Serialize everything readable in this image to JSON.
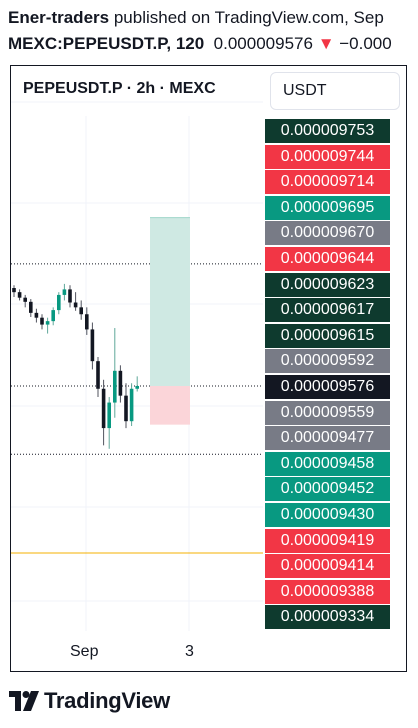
{
  "header": {
    "author": "Ener-traders",
    "published_text": " published on TradingView.com, Sep",
    "symbol": "MEXC:PEPEUSDT.P, 120",
    "price": "0.000009576",
    "arrow": "▼",
    "change": "−0.000"
  },
  "chart_header": {
    "title": "PEPEUSDT.P · 2h · MEXC",
    "unit_button": "USDT"
  },
  "colors": {
    "up": "#089981",
    "down": "#f23645",
    "neutral": "#787b86",
    "dark": "#0e3a2e",
    "current": "#131722",
    "profit_zone": "#cfe9e3",
    "loss_zone": "#fbd5d9",
    "hline": "#f5b000"
  },
  "chart_data": {
    "type": "candlestick",
    "title": "PEPEUSDT.P · 2h · MEXC",
    "current_price": 9.576e-06,
    "x_ticks": [
      "Sep",
      "3"
    ],
    "price_tags": [
      {
        "value": "0.000009753",
        "color": "dark"
      },
      {
        "value": "0.000009744",
        "color": "down"
      },
      {
        "value": "0.000009714",
        "color": "down"
      },
      {
        "value": "0.000009695",
        "color": "up"
      },
      {
        "value": "0.000009670",
        "color": "neutral"
      },
      {
        "value": "0.000009644",
        "color": "down"
      },
      {
        "value": "0.000009623",
        "color": "dark"
      },
      {
        "value": "0.000009617",
        "color": "dark"
      },
      {
        "value": "0.000009615",
        "color": "dark"
      },
      {
        "value": "0.000009592",
        "color": "neutral"
      },
      {
        "value": "0.000009576",
        "color": "current"
      },
      {
        "value": "0.000009559",
        "color": "neutral"
      },
      {
        "value": "0.000009477",
        "color": "neutral"
      },
      {
        "value": "0.000009458",
        "color": "up"
      },
      {
        "value": "0.000009452",
        "color": "up"
      },
      {
        "value": "0.000009430",
        "color": "up"
      },
      {
        "value": "0.000009419",
        "color": "down"
      },
      {
        "value": "0.000009414",
        "color": "down"
      },
      {
        "value": "0.000009388",
        "color": "down"
      },
      {
        "value": "0.000009334",
        "color": "dark"
      }
    ],
    "candles": [
      {
        "o": 9.718,
        "h": 9.722,
        "l": 9.705,
        "c": 9.712
      },
      {
        "o": 9.712,
        "h": 9.716,
        "l": 9.7,
        "c": 9.704
      },
      {
        "o": 9.704,
        "h": 9.708,
        "l": 9.69,
        "c": 9.698
      },
      {
        "o": 9.698,
        "h": 9.702,
        "l": 9.676,
        "c": 9.682
      },
      {
        "o": 9.682,
        "h": 9.688,
        "l": 9.668,
        "c": 9.675
      },
      {
        "o": 9.675,
        "h": 9.68,
        "l": 9.658,
        "c": 9.665
      },
      {
        "o": 9.665,
        "h": 9.675,
        "l": 9.652,
        "c": 9.67
      },
      {
        "o": 9.67,
        "h": 9.69,
        "l": 9.664,
        "c": 9.686
      },
      {
        "o": 9.686,
        "h": 9.712,
        "l": 9.68,
        "c": 9.708
      },
      {
        "o": 9.708,
        "h": 9.724,
        "l": 9.7,
        "c": 9.716
      },
      {
        "o": 9.716,
        "h": 9.722,
        "l": 9.69,
        "c": 9.697
      },
      {
        "o": 9.697,
        "h": 9.712,
        "l": 9.685,
        "c": 9.69
      },
      {
        "o": 9.69,
        "h": 9.7,
        "l": 9.672,
        "c": 9.68
      },
      {
        "o": 9.68,
        "h": 9.69,
        "l": 9.65,
        "c": 9.658
      },
      {
        "o": 9.658,
        "h": 9.668,
        "l": 9.6,
        "c": 9.612
      },
      {
        "o": 9.612,
        "h": 9.618,
        "l": 9.56,
        "c": 9.572
      },
      {
        "o": 9.572,
        "h": 9.585,
        "l": 9.49,
        "c": 9.515
      },
      {
        "o": 9.515,
        "h": 9.56,
        "l": 9.485,
        "c": 9.552
      },
      {
        "o": 9.552,
        "h": 9.66,
        "l": 9.53,
        "c": 9.598
      },
      {
        "o": 9.598,
        "h": 9.606,
        "l": 9.552,
        "c": 9.562
      },
      {
        "o": 9.562,
        "h": 9.58,
        "l": 9.515,
        "c": 9.525
      },
      {
        "o": 9.525,
        "h": 9.58,
        "l": 9.518,
        "c": 9.572
      },
      {
        "o": 9.572,
        "h": 9.59,
        "l": 9.568,
        "c": 9.576
      }
    ],
    "reference_lines": [
      9.753,
      9.576,
      9.477
    ],
    "horizontal_line": 9.334,
    "position": {
      "entry": 9.576,
      "target": 9.82,
      "stop": 9.52
    }
  }
}
